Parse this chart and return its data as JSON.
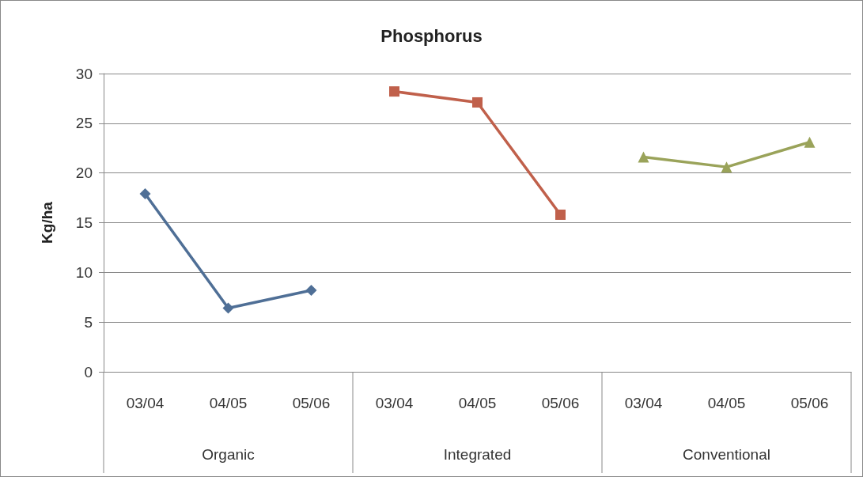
{
  "chart_data": {
    "type": "line",
    "title": "Phosphorus",
    "ylabel": "Kg/ha",
    "categories": [
      "03/04",
      "04/05",
      "05/06",
      "03/04",
      "04/05",
      "05/06",
      "03/04",
      "04/05",
      "05/06"
    ],
    "annotations": [
      "Organic",
      "Integrated",
      "Conventional"
    ],
    "series": [
      {
        "color": "#4f6f96",
        "marker": "diamond",
        "values": [
          17.9,
          6.4,
          8.2,
          null,
          null,
          null,
          null,
          null,
          null
        ]
      },
      {
        "color": "#c0604b",
        "marker": "square",
        "values": [
          null,
          null,
          null,
          28.2,
          27.1,
          15.8,
          null,
          null,
          null
        ]
      },
      {
        "color": "#9aa35a",
        "marker": "triangle",
        "values": [
          null,
          null,
          null,
          null,
          null,
          null,
          21.6,
          20.6,
          23.1
        ]
      }
    ],
    "ylim": [
      0,
      30
    ],
    "yticks": [
      0,
      5,
      10,
      15,
      20,
      25,
      30
    ],
    "grid": "y",
    "line_style": "solid"
  }
}
